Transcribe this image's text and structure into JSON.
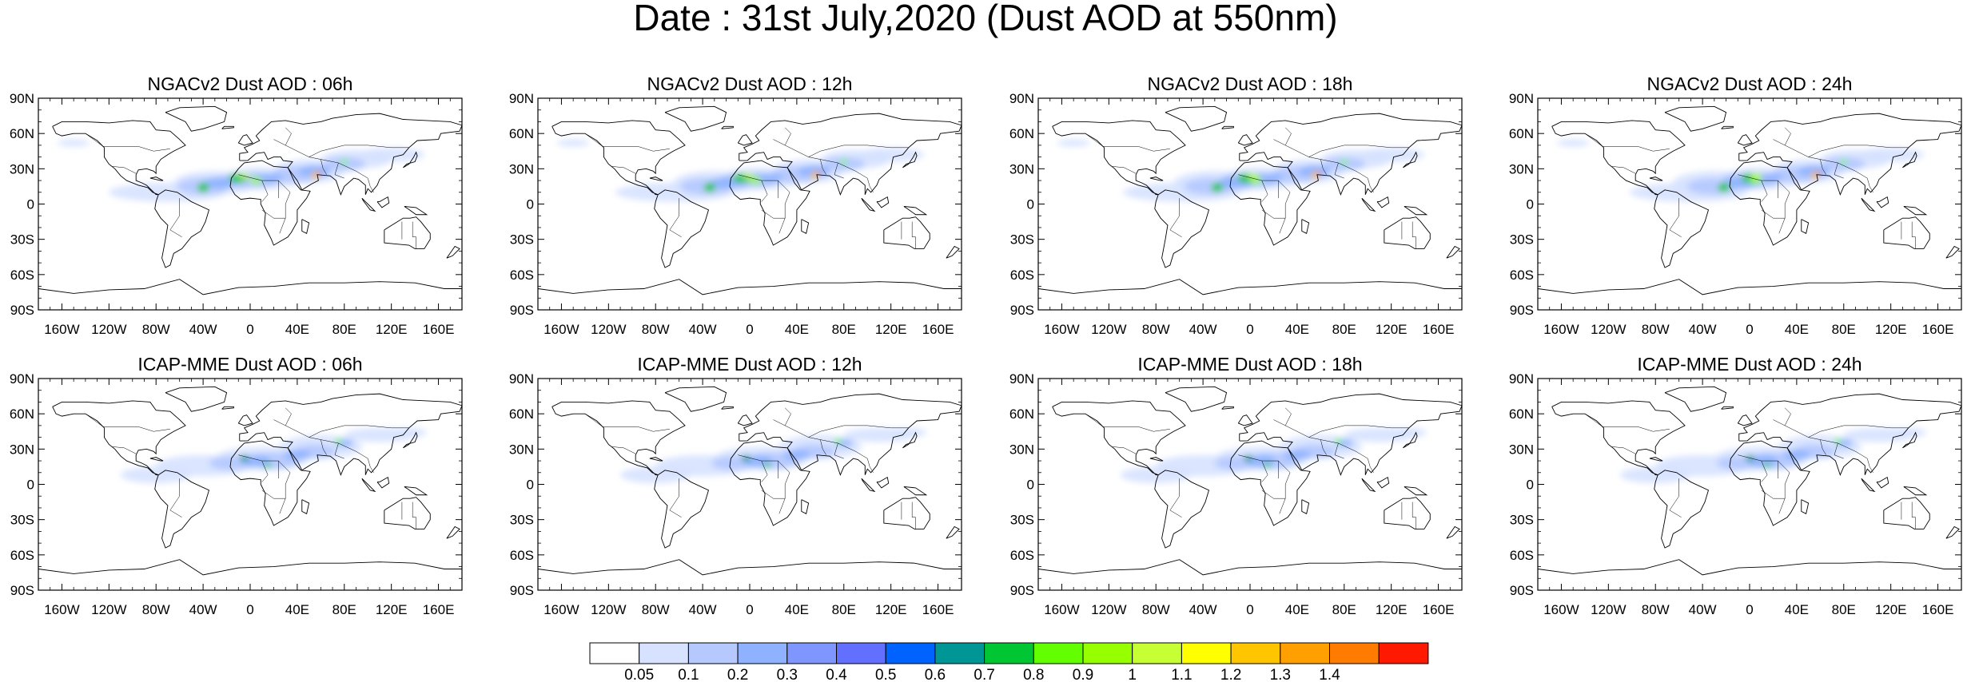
{
  "title": "Date : 31st July,2020 (Dust AOD at 550nm)",
  "lat_labels": [
    "90N",
    "60N",
    "30N",
    "0",
    "30S",
    "60S",
    "90S"
  ],
  "lon_labels": [
    "160W",
    "120W",
    "80W",
    "40W",
    "0",
    "40E",
    "80E",
    "120E",
    "160E"
  ],
  "panels": [
    {
      "title": "NGACv2 Dust AOD : 06h",
      "model": "NGACv2",
      "hour": "06h"
    },
    {
      "title": "NGACv2 Dust AOD : 12h",
      "model": "NGACv2",
      "hour": "12h"
    },
    {
      "title": "NGACv2 Dust AOD : 18h",
      "model": "NGACv2",
      "hour": "18h"
    },
    {
      "title": "NGACv2 Dust AOD : 24h",
      "model": "NGACv2",
      "hour": "24h"
    },
    {
      "title": "ICAP-MME Dust AOD : 06h",
      "model": "ICAP-MME",
      "hour": "06h"
    },
    {
      "title": "ICAP-MME Dust AOD : 12h",
      "model": "ICAP-MME",
      "hour": "12h"
    },
    {
      "title": "ICAP-MME Dust AOD : 18h",
      "model": "ICAP-MME",
      "hour": "18h"
    },
    {
      "title": "ICAP-MME Dust AOD : 24h",
      "model": "ICAP-MME",
      "hour": "24h"
    }
  ],
  "colorbar": {
    "labels": [
      "0.05",
      "0.1",
      "0.2",
      "0.3",
      "0.4",
      "0.5",
      "0.6",
      "0.7",
      "0.8",
      "0.9",
      "1",
      "1.1",
      "1.2",
      "1.3",
      "1.4"
    ],
    "colors": [
      "#ffffff",
      "#d6e2ff",
      "#b5c9ff",
      "#8eb2ff",
      "#7f96ff",
      "#6370ff",
      "#0063ff",
      "#009696",
      "#00c633",
      "#63ff00",
      "#96ff00",
      "#c6ff33",
      "#ffff00",
      "#ffc600",
      "#ffa000",
      "#ff7c00",
      "#ff1900"
    ]
  }
}
